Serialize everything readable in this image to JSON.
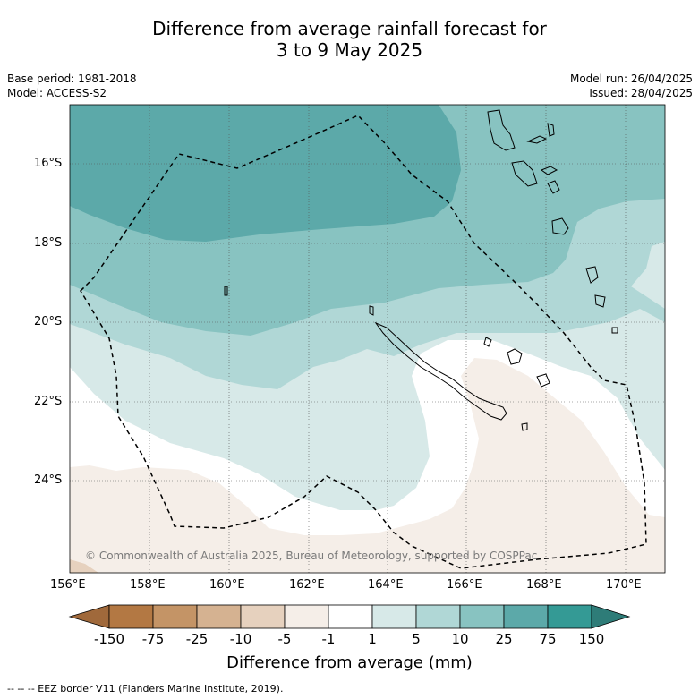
{
  "title_line1": "Difference from average rainfall forecast for",
  "title_line2": "3 to 9 May 2025",
  "base_period": "Base period: 1981-2018",
  "model": "Model: ACCESS-S2",
  "model_run": "Model run: 26/04/2025",
  "issued": "Issued: 28/04/2025",
  "copyright": "© Commonwealth of Australia 2025, Bureau of Meteorology, supported by COSPPac",
  "lat_labels": [
    "16°S",
    "18°S",
    "20°S",
    "22°S",
    "24°S"
  ],
  "lon_labels": [
    "156°E",
    "158°E",
    "160°E",
    "162°E",
    "164°E",
    "166°E",
    "168°E",
    "170°E"
  ],
  "colorbar": {
    "ticks": [
      "-150",
      "-75",
      "-25",
      "-10",
      "-5",
      "-1",
      "1",
      "5",
      "10",
      "25",
      "75",
      "150"
    ],
    "colors": [
      "#a0693b",
      "#b37843",
      "#c49466",
      "#d5b291",
      "#e6d1be",
      "#f5eee8",
      "#ffffff",
      "#d7e9e8",
      "#b0d7d6",
      "#88c3c1",
      "#5ca9a9",
      "#349a95",
      "#2e7c78"
    ],
    "title": "Difference from average (mm)"
  },
  "footnote": "--  --  -- EEZ border V11 (Flanders Marine Institute, 2019)."
}
